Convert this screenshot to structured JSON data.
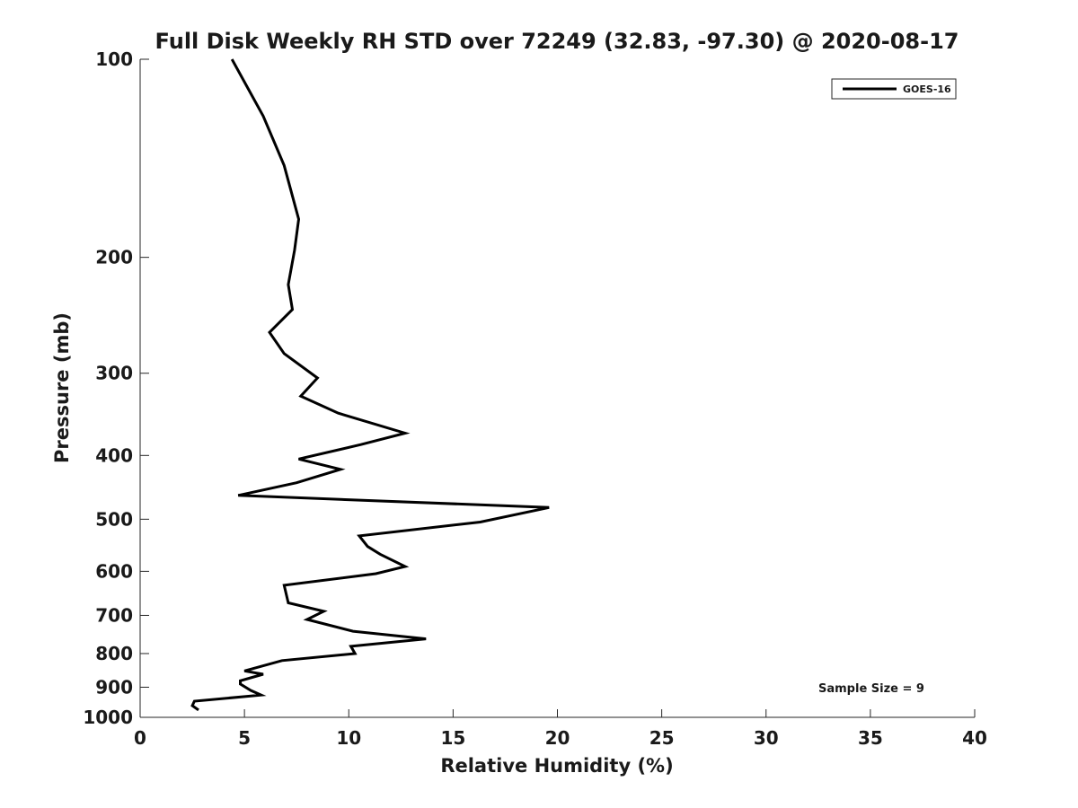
{
  "chart_data": {
    "type": "line",
    "title": "Full Disk Weekly RH STD over 72249 (32.83, -97.30) @ 2020-08-17",
    "xlabel": "Relative Humidity (%)",
    "ylabel": "Pressure (mb)",
    "xlim": [
      0,
      40
    ],
    "ylim": [
      100,
      1000
    ],
    "y_scale": "log",
    "y_inverted": true,
    "grid": false,
    "x_ticks": [
      "0",
      "5",
      "10",
      "15",
      "20",
      "25",
      "30",
      "35",
      "40"
    ],
    "y_ticks": [
      "100",
      "200",
      "300",
      "400",
      "500",
      "600",
      "700",
      "800",
      "900",
      "1000"
    ],
    "legend": {
      "position": "top-right",
      "entries": [
        "GOES-16"
      ]
    },
    "annotation": "Sample Size = 9",
    "series": [
      {
        "name": "GOES-16",
        "color": "#000000",
        "x": [
          4.4,
          5.9,
          6.9,
          7.6,
          7.4,
          7.1,
          7.3,
          6.2,
          6.9,
          8.5,
          7.7,
          9.5,
          12.7,
          10.6,
          7.6,
          9.6,
          7.5,
          4.7,
          19.6,
          16.3,
          10.5,
          10.9,
          11.5,
          12.7,
          11.3,
          6.9,
          7.1,
          8.8,
          8.0,
          10.2,
          13.7,
          10.1,
          10.3,
          6.8,
          5.0,
          5.9,
          4.8,
          4.8,
          5.3,
          5.8,
          2.6,
          2.5,
          2.8
        ],
        "y": [
          100,
          122,
          145,
          175,
          195,
          220,
          240,
          260,
          280,
          305,
          325,
          345,
          370,
          385,
          405,
          420,
          440,
          460,
          480,
          505,
          530,
          550,
          565,
          590,
          605,
          630,
          670,
          690,
          710,
          740,
          760,
          780,
          800,
          820,
          850,
          860,
          880,
          890,
          910,
          925,
          945,
          960,
          975
        ]
      }
    ]
  }
}
